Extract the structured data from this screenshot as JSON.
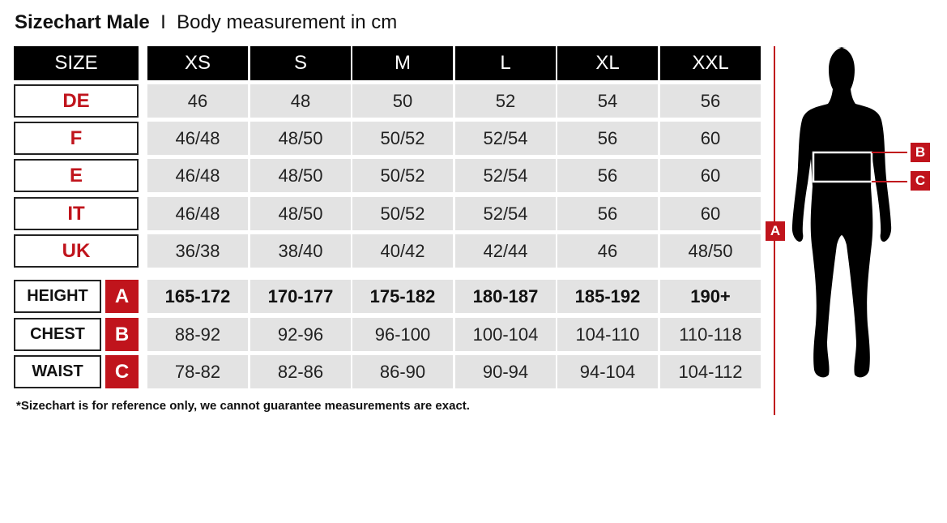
{
  "title": {
    "main": "Sizechart Male",
    "separator": "I",
    "subtitle": "Body measurement in cm"
  },
  "header": {
    "label": "SIZE",
    "sizes": [
      "XS",
      "S",
      "M",
      "L",
      "XL",
      "XXL"
    ]
  },
  "rows": [
    {
      "label": "DE",
      "values": [
        "46",
        "48",
        "50",
        "52",
        "54",
        "56"
      ]
    },
    {
      "label": "F",
      "values": [
        "46/48",
        "48/50",
        "50/52",
        "52/54",
        "56",
        "60"
      ]
    },
    {
      "label": "E",
      "values": [
        "46/48",
        "48/50",
        "50/52",
        "52/54",
        "56",
        "60"
      ]
    },
    {
      "label": "IT",
      "values": [
        "46/48",
        "48/50",
        "50/52",
        "52/54",
        "56",
        "60"
      ]
    },
    {
      "label": "UK",
      "values": [
        "36/38",
        "38/40",
        "40/42",
        "42/44",
        "46",
        "48/50"
      ]
    }
  ],
  "measurements": [
    {
      "label": "HEIGHT",
      "marker": "A",
      "values": [
        "165-172",
        "170-177",
        "175-182",
        "180-187",
        "185-192",
        "190+"
      ]
    },
    {
      "label": "CHEST",
      "marker": "B",
      "values": [
        "88-92",
        "92-96",
        "96-100",
        "100-104",
        "104-110",
        "110-118"
      ]
    },
    {
      "label": "WAIST",
      "marker": "C",
      "values": [
        "78-82",
        "82-86",
        "86-90",
        "90-94",
        "94-104",
        "104-112"
      ]
    }
  ],
  "footnote": "*Sizechart is for reference only, we cannot guarantee measurements are exact.",
  "figure": {
    "height_marker": "A",
    "chest_marker": "B",
    "waist_marker": "C"
  },
  "colors": {
    "accent": "#c0141c",
    "header": "#000000",
    "cell": "#e3e3e3"
  }
}
